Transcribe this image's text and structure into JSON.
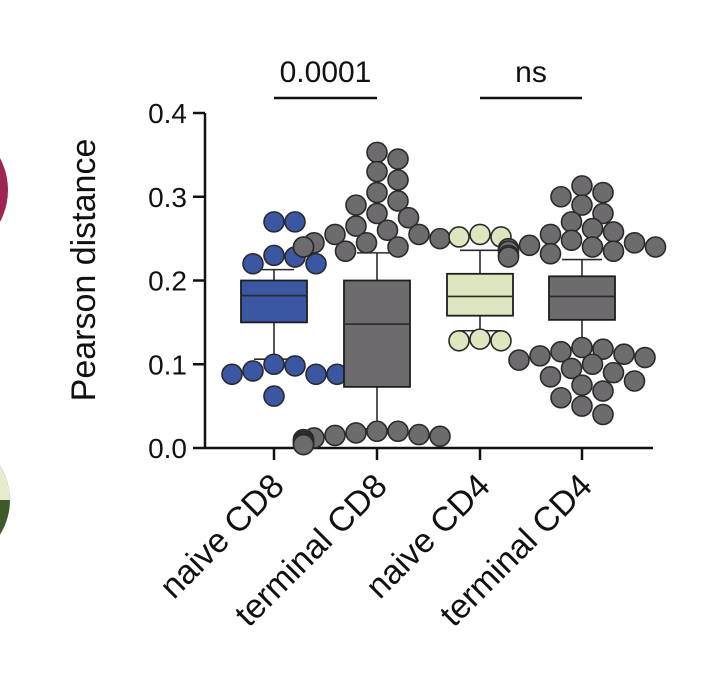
{
  "chart_data": {
    "type": "box",
    "ylabel": "Pearson distance",
    "xlabel": "",
    "ylim": [
      0.0,
      0.4
    ],
    "yticks": [
      {
        "value": 0.0,
        "label": "0.0"
      },
      {
        "value": 0.1,
        "label": "0.1"
      },
      {
        "value": 0.2,
        "label": "0.2"
      },
      {
        "value": 0.3,
        "label": "0.3"
      },
      {
        "value": 0.4,
        "label": "0.4"
      }
    ],
    "categories": [
      "naive CD8",
      "terminal CD8",
      "naive CD4",
      "terminal CD4"
    ],
    "boxes": [
      {
        "name": "naive CD8",
        "fill": "#3b57a3",
        "median": 0.182,
        "q1": 0.15,
        "q3": 0.2,
        "whisker_low": 0.106,
        "whisker_high": 0.213,
        "outliers": [
          0.27,
          0.27,
          0.23,
          0.228,
          0.22,
          0.22,
          0.1,
          0.098,
          0.092,
          0.088,
          0.088,
          0.088,
          0.062
        ]
      },
      {
        "name": "terminal CD8",
        "fill": "#6d6b6e",
        "median": 0.148,
        "q1": 0.073,
        "q3": 0.2,
        "whisker_low": 0.023,
        "whisker_high": 0.233,
        "outliers": [
          0.353,
          0.345,
          0.33,
          0.32,
          0.305,
          0.295,
          0.29,
          0.28,
          0.275,
          0.265,
          0.26,
          0.255,
          0.255,
          0.25,
          0.245,
          0.245,
          0.24,
          0.24,
          0.24,
          0.235,
          0.02,
          0.02,
          0.018,
          0.016,
          0.015,
          0.014,
          0.012,
          0.01,
          0.01,
          0.008,
          0.006,
          0.005,
          0.004
        ]
      },
      {
        "name": "naive CD4",
        "fill": "#dce6bf",
        "median": 0.181,
        "q1": 0.158,
        "q3": 0.208,
        "whisker_low": 0.14,
        "whisker_high": 0.236,
        "outliers": [
          0.255,
          0.252,
          0.252,
          0.13,
          0.128,
          0.128
        ]
      },
      {
        "name": "terminal CD4",
        "fill": "#6d6b6e",
        "median": 0.181,
        "q1": 0.153,
        "q3": 0.205,
        "whisker_low": 0.12,
        "whisker_high": 0.225,
        "outliers": [
          0.313,
          0.305,
          0.3,
          0.29,
          0.28,
          0.27,
          0.262,
          0.258,
          0.255,
          0.248,
          0.245,
          0.242,
          0.24,
          0.24,
          0.238,
          0.235,
          0.235,
          0.232,
          0.23,
          0.228,
          0.12,
          0.118,
          0.115,
          0.112,
          0.11,
          0.108,
          0.105,
          0.1,
          0.095,
          0.09,
          0.085,
          0.08,
          0.075,
          0.068,
          0.06,
          0.05,
          0.04
        ]
      }
    ],
    "comparisons": [
      {
        "from": "naive CD8",
        "to": "terminal CD8",
        "label": "0.0001"
      },
      {
        "from": "naive CD4",
        "to": "terminal CD4",
        "label": "ns"
      }
    ]
  },
  "colors": {
    "axis": "#111111",
    "point_stroke": "#2a2a2a",
    "median_line": "#2a2a2a",
    "edge_circle_top": "#9e2552",
    "edge_circle_bottom_light": "#e4eccc",
    "edge_circle_bottom_dark": "#3e5a2a"
  }
}
